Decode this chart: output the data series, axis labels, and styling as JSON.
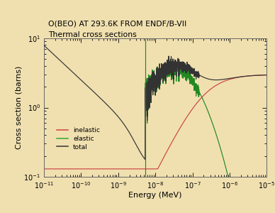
{
  "title_line1": "O(BEO) AT 293.6K FROM ENDF/B-VII",
  "title_line2": "Thermal cross sections",
  "xlabel": "Energy (MeV)",
  "ylabel": "Cross section (barns)",
  "xlim": [
    1e-11,
    1e-05
  ],
  "ylim": [
    0.1,
    10.0
  ],
  "background_color": "#f0e0b0",
  "plot_bg_color": "#f0e0b0",
  "legend_labels": [
    "inelastic",
    "elastic",
    "total"
  ],
  "legend_colors": [
    "#cc4444",
    "#33aa33",
    "#333333"
  ],
  "line_colors": {
    "inelastic": "#cc4444",
    "elastic": "#228822",
    "total": "#333333"
  },
  "vertical_line_x": 5.3e-09,
  "vertical_line_color": "#228822"
}
